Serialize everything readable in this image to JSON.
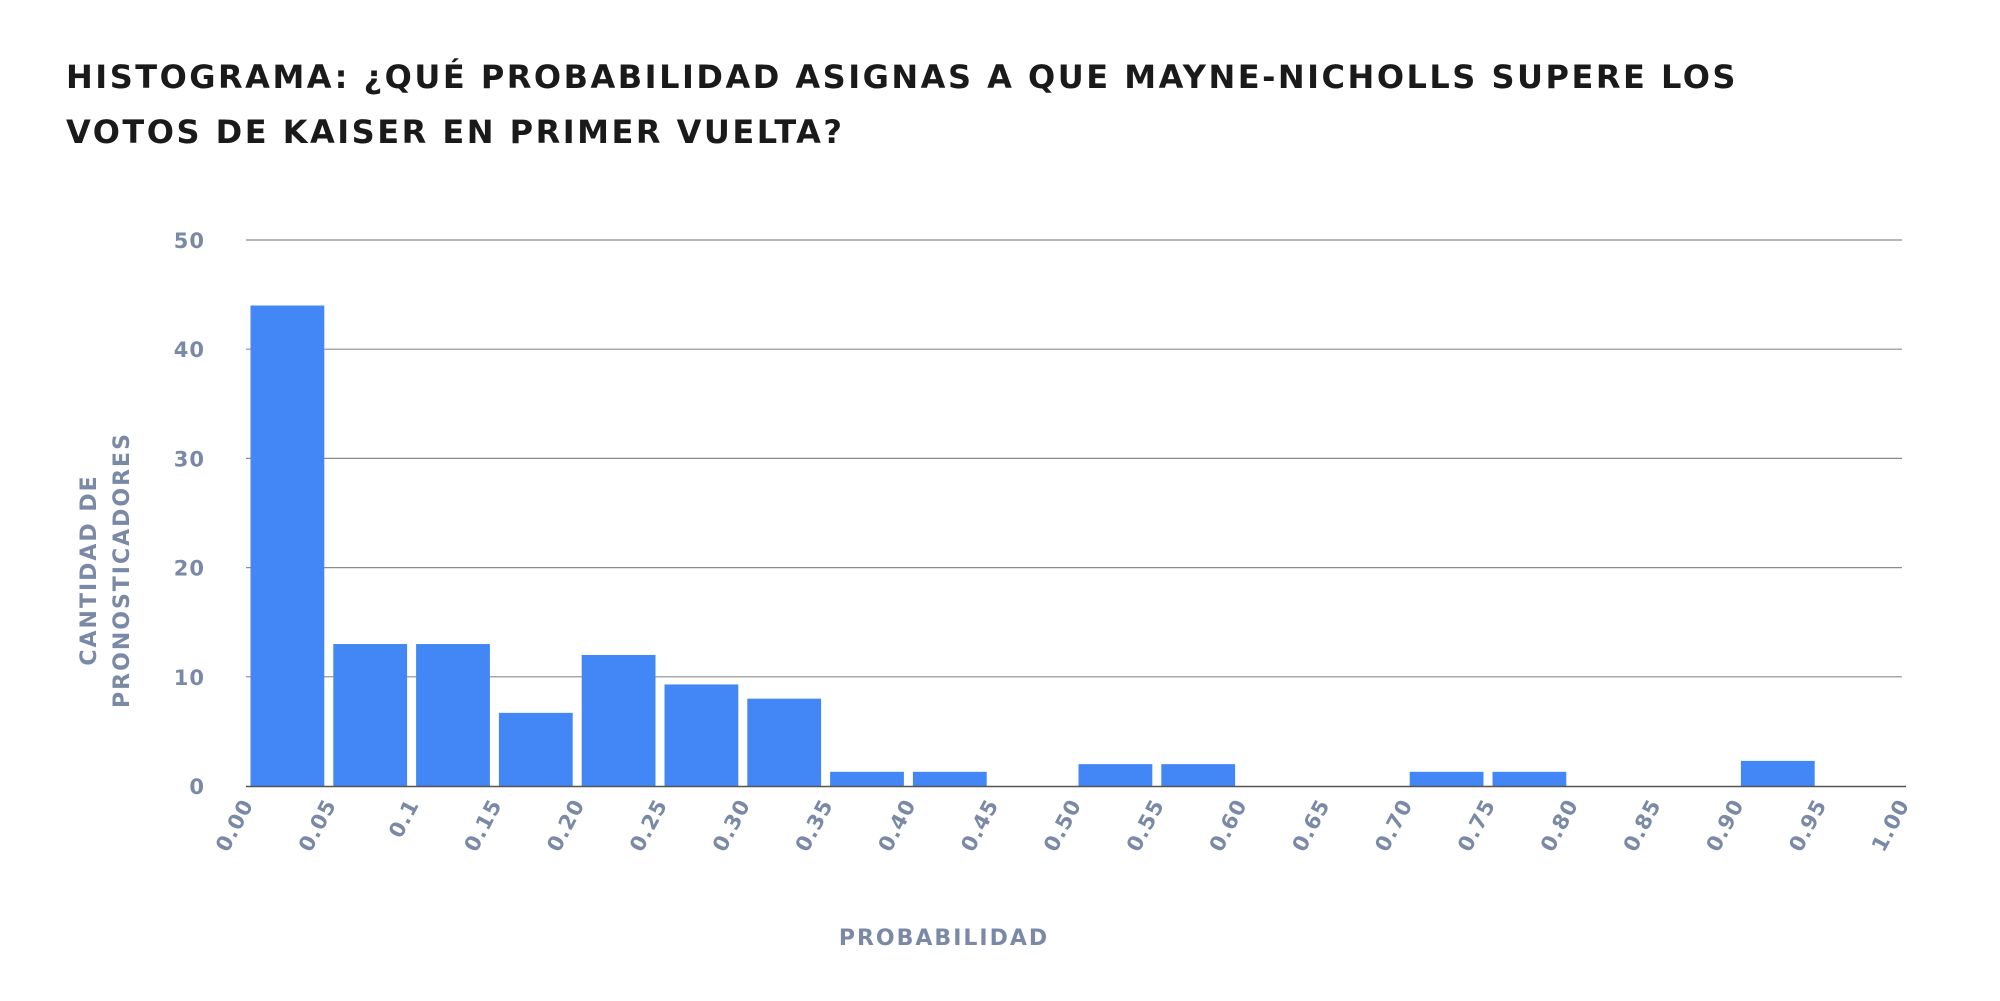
{
  "chart_data": {
    "type": "bar",
    "title_lines": [
      "HISTOGRAMA: ¿QUÉ PROBABILIDAD ASIGNAS A QUE MAYNE-NICHOLLS SUPERE LOS",
      "VOTOS DE KAISER EN PRIMER VUELTA?"
    ],
    "xlabel": "PROBABILIDAD",
    "ylabel_lines": [
      "CANTIDAD DE",
      "PRONOSTICADORES"
    ],
    "x_ticks": [
      "0.00",
      "0.05",
      "0.1",
      "0.15",
      "0.20",
      "0.25",
      "0.30",
      "0.35",
      "0.40",
      "0.45",
      "0.50",
      "0.55",
      "0.60",
      "0.65",
      "0.70",
      "0.75",
      "0.80",
      "0.85",
      "0.90",
      "0.95",
      "1.00"
    ],
    "y_ticks": [
      "0",
      "10",
      "20",
      "30",
      "40",
      "50"
    ],
    "ylim": [
      0,
      50
    ],
    "bins": [
      {
        "from": 0.0,
        "to": 0.05,
        "value": 44
      },
      {
        "from": 0.05,
        "to": 0.1,
        "value": 13
      },
      {
        "from": 0.1,
        "to": 0.15,
        "value": 13
      },
      {
        "from": 0.15,
        "to": 0.2,
        "value": 6.7
      },
      {
        "from": 0.2,
        "to": 0.25,
        "value": 12
      },
      {
        "from": 0.25,
        "to": 0.3,
        "value": 9.3
      },
      {
        "from": 0.3,
        "to": 0.35,
        "value": 8
      },
      {
        "from": 0.35,
        "to": 0.4,
        "value": 1.3
      },
      {
        "from": 0.4,
        "to": 0.45,
        "value": 1.3
      },
      {
        "from": 0.45,
        "to": 0.5,
        "value": 0
      },
      {
        "from": 0.5,
        "to": 0.55,
        "value": 2
      },
      {
        "from": 0.55,
        "to": 0.6,
        "value": 2
      },
      {
        "from": 0.6,
        "to": 0.65,
        "value": 0
      },
      {
        "from": 0.65,
        "to": 0.7,
        "value": 0
      },
      {
        "from": 0.7,
        "to": 0.75,
        "value": 1.3
      },
      {
        "from": 0.75,
        "to": 0.8,
        "value": 1.3
      },
      {
        "from": 0.8,
        "to": 0.85,
        "value": 0
      },
      {
        "from": 0.85,
        "to": 0.9,
        "value": 0
      },
      {
        "from": 0.9,
        "to": 0.95,
        "value": 2.3
      },
      {
        "from": 0.95,
        "to": 1.0,
        "value": 0
      }
    ],
    "grid": true,
    "legend": "none",
    "bar_color": "#4287f5",
    "tick_color": "#7a8aa6",
    "title_color": "#1a1a1a"
  }
}
